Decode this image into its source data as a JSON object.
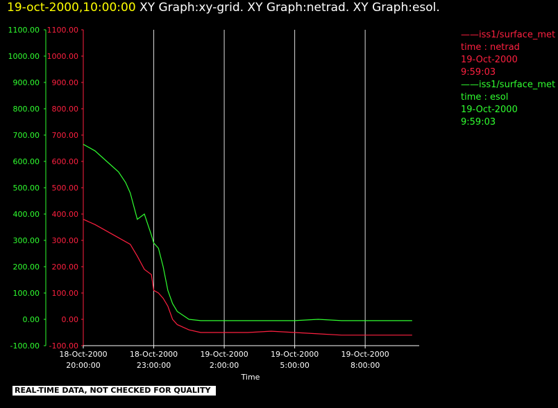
{
  "header": {
    "timestamp": "19-oct-2000,10:00:00",
    "graphs": "XY Graph:xy-grid.  XY Graph:netrad.  XY Graph:esol."
  },
  "legend": [
    {
      "line1": "——iss1/surface_met",
      "line2": "time : netrad",
      "line3": "19-Oct-2000",
      "line4": "9:59:03",
      "color": "#ff2040"
    },
    {
      "line1": "——iss1/surface_met",
      "line2": "time : esol",
      "line3": "19-Oct-2000",
      "line4": "9:59:03",
      "color": "#30ff30"
    }
  ],
  "disclaimer": "REAL-TIME DATA, NOT CHECKED FOR QUALITY",
  "chart_data": {
    "type": "line",
    "xlabel": "Time",
    "ylim": [
      -100,
      1100
    ],
    "y_ticks": [
      "1100.00",
      "1000.00",
      "900.00",
      "800.00",
      "700.00",
      "600.00",
      "500.00",
      "400.00",
      "300.00",
      "200.00",
      "100.00",
      "0.00",
      "-100.00"
    ],
    "x_ticks": [
      {
        "date": "18-Oct-2000",
        "time": "20:00:00"
      },
      {
        "date": "18-Oct-2000",
        "time": "23:00:00"
      },
      {
        "date": "19-Oct-2000",
        "time": "2:00:00"
      },
      {
        "date": "19-Oct-2000",
        "time": "5:00:00"
      },
      {
        "date": "19-Oct-2000",
        "time": "8:00:00"
      }
    ],
    "xlim_hours": [
      20,
      34.3
    ],
    "grid_hours": [
      23,
      26,
      29,
      32
    ],
    "series": [
      {
        "name": "iss1/surface_met time : esol",
        "color": "#30ff30",
        "x": [
          20,
          20.5,
          21,
          21.5,
          21.8,
          22,
          22.3,
          22.6,
          22.9,
          23,
          23.2,
          23.4,
          23.6,
          23.8,
          24,
          24.5,
          25,
          25.5,
          26,
          27,
          28,
          29,
          30,
          31,
          32,
          33,
          34
        ],
        "y": [
          665,
          640,
          600,
          560,
          520,
          480,
          380,
          400,
          320,
          290,
          270,
          200,
          110,
          60,
          30,
          0,
          -5,
          -5,
          -5,
          -5,
          -5,
          -5,
          0,
          -5,
          -5,
          -5,
          -5
        ]
      },
      {
        "name": "iss1/surface_met time : netrad",
        "color": "#ff2040",
        "x": [
          20,
          20.5,
          21,
          21.5,
          22,
          22.3,
          22.6,
          22.9,
          23,
          23.2,
          23.4,
          23.6,
          23.8,
          24,
          24.5,
          25,
          25.5,
          26,
          27,
          28,
          29,
          30,
          31,
          32,
          33,
          34
        ],
        "y": [
          380,
          360,
          335,
          310,
          285,
          240,
          190,
          170,
          110,
          100,
          80,
          50,
          0,
          -20,
          -40,
          -50,
          -50,
          -50,
          -50,
          -45,
          -50,
          -55,
          -60,
          -60,
          -60,
          -60
        ]
      }
    ]
  }
}
